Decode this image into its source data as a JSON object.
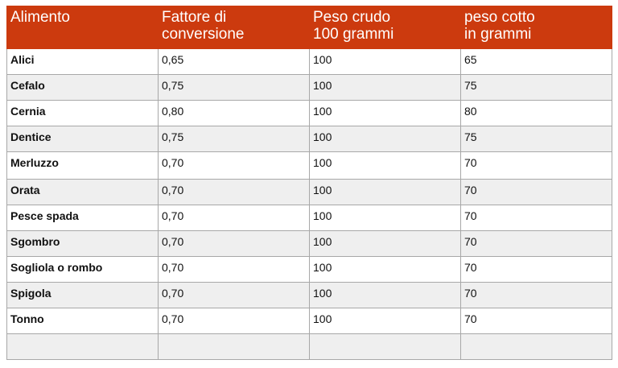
{
  "table": {
    "headers": [
      [
        "Alimento"
      ],
      [
        "Fattore di",
        "conversione"
      ],
      [
        "Peso crudo",
        "100 grammi"
      ],
      [
        "peso cotto",
        "in grammi"
      ]
    ],
    "header_color": "#cc3a0e",
    "rows": [
      [
        "Alici",
        "0,65",
        "100",
        "65"
      ],
      [
        "Cefalo",
        "0,75",
        "100",
        "75"
      ],
      [
        "Cernia",
        "0,80",
        "100",
        "80"
      ],
      [
        "Dentice",
        "0,75",
        "100",
        "75"
      ],
      [
        "Merluzzo",
        "0,70",
        "100",
        "70"
      ],
      [
        "Orata",
        "0,70",
        "100",
        "70"
      ],
      [
        "Pesce spada",
        "0,70",
        "100",
        "70"
      ],
      [
        "Sgombro",
        "0,70",
        "100",
        "70"
      ],
      [
        "Sogliola o rombo",
        "0,70",
        "100",
        "70"
      ],
      [
        "Spigola",
        "0,70",
        "100",
        "70"
      ],
      [
        "Tonno",
        "0,70",
        "100",
        "70"
      ],
      [
        "",
        "",
        "",
        ""
      ]
    ]
  }
}
